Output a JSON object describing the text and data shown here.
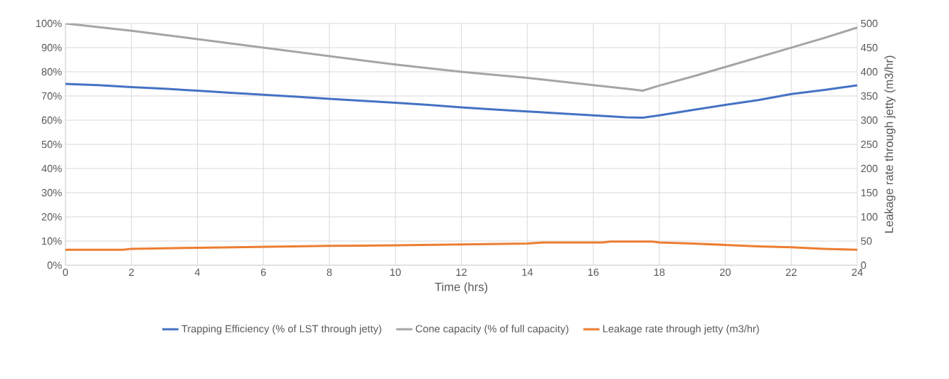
{
  "chart_data": {
    "type": "line",
    "xlabel": "Time (hrs)",
    "y2label": "Leakage rate through jetty (m3/hr)",
    "xlim": [
      0,
      24
    ],
    "xticks": [
      0,
      2,
      4,
      6,
      8,
      10,
      12,
      14,
      16,
      18,
      20,
      22,
      24
    ],
    "ylim": [
      0,
      100
    ],
    "yticks": [
      {
        "value": 0,
        "label": "0%"
      },
      {
        "value": 10,
        "label": "10%"
      },
      {
        "value": 20,
        "label": "20%"
      },
      {
        "value": 30,
        "label": "30%"
      },
      {
        "value": 40,
        "label": "40%"
      },
      {
        "value": 50,
        "label": "50%"
      },
      {
        "value": 60,
        "label": "60%"
      },
      {
        "value": 70,
        "label": "70%"
      },
      {
        "value": 80,
        "label": "80%"
      },
      {
        "value": 90,
        "label": "90%"
      },
      {
        "value": 100,
        "label": "100%"
      }
    ],
    "y2lim": [
      0,
      500
    ],
    "y2ticks": [
      0,
      50,
      100,
      150,
      200,
      250,
      300,
      350,
      400,
      450,
      500
    ],
    "grid": true,
    "legend": "bottom",
    "series": [
      {
        "name": "Trapping Efficiency (% of LST through jetty)",
        "color": "#4472c4",
        "x": [
          0,
          1,
          2,
          3,
          4,
          5,
          6,
          7,
          8,
          9,
          10,
          11,
          12,
          13,
          14,
          15,
          16,
          17,
          17.5,
          18,
          19,
          20,
          21,
          22,
          23,
          24
        ],
        "values": [
          75,
          74.5,
          73.7,
          73,
          72.2,
          71.3,
          70.5,
          69.7,
          68.8,
          68,
          67.2,
          66.3,
          65.3,
          64.4,
          63.6,
          62.8,
          62,
          61.2,
          61,
          62,
          64.2,
          66.3,
          68.3,
          70.8,
          72.5,
          74.4
        ]
      },
      {
        "name": "Cone capacity (% of full capacity)",
        "color": "#a5a5a5",
        "x": [
          0,
          2,
          4,
          6,
          8,
          10,
          12,
          14,
          16,
          17,
          17.5,
          18,
          19,
          20,
          21,
          22,
          23,
          24
        ],
        "values": [
          100,
          97,
          93.5,
          90,
          86.5,
          83,
          80,
          77.5,
          74.5,
          73,
          72.2,
          74.3,
          78,
          82,
          86,
          90,
          94,
          98.3
        ]
      },
      {
        "name": "Leakage rate through jetty (m3/hr)",
        "color": "#ed7d31",
        "axis": "y2",
        "x": [
          0,
          1.75,
          2,
          4,
          6,
          8,
          10,
          12,
          14,
          14.5,
          16.3,
          16.5,
          17.8,
          18,
          19,
          20,
          21,
          22,
          23,
          24
        ],
        "values": [
          32,
          32,
          34,
          36,
          38,
          40,
          41,
          43,
          45,
          47,
          47,
          49,
          49,
          47,
          45,
          42,
          39,
          37,
          34,
          32
        ]
      }
    ]
  }
}
